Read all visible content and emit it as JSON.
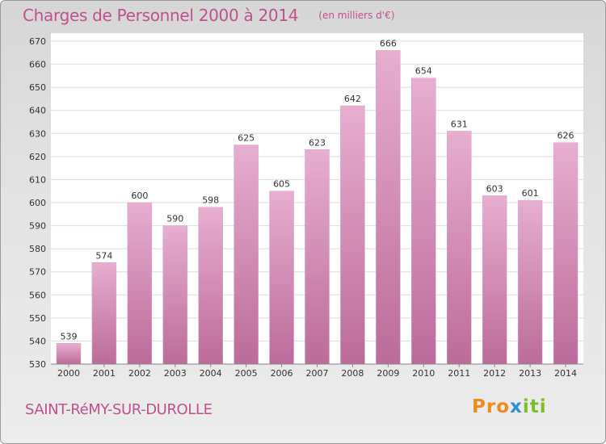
{
  "header": {
    "title": "Charges de Personnel 2000 à 2014",
    "subtitle": "(en milliers d'€)"
  },
  "footer": {
    "commune": "SAINT-RéMY-SUR-DUROLLE",
    "logo_text": "Proxiti"
  },
  "colors": {
    "bar_light": "#e7aed0",
    "bar_dark": "#bc6b9a",
    "title": "#c0508e",
    "grid": "#dddddd"
  },
  "chart_data": {
    "type": "bar",
    "title": "Charges de Personnel 2000 à 2014",
    "subtitle": "(en milliers d'€)",
    "xlabel": "",
    "ylabel": "",
    "categories": [
      "2000",
      "2001",
      "2002",
      "2003",
      "2004",
      "2005",
      "2006",
      "2007",
      "2008",
      "2009",
      "2010",
      "2011",
      "2012",
      "2013",
      "2014"
    ],
    "values": [
      539,
      574,
      600,
      590,
      598,
      625,
      605,
      623,
      642,
      666,
      654,
      631,
      603,
      601,
      626
    ],
    "ylim": [
      530,
      670
    ],
    "yticks": [
      530,
      540,
      550,
      560,
      570,
      580,
      590,
      600,
      610,
      620,
      630,
      640,
      650,
      660,
      670
    ],
    "grid": true,
    "data_labels": true
  }
}
